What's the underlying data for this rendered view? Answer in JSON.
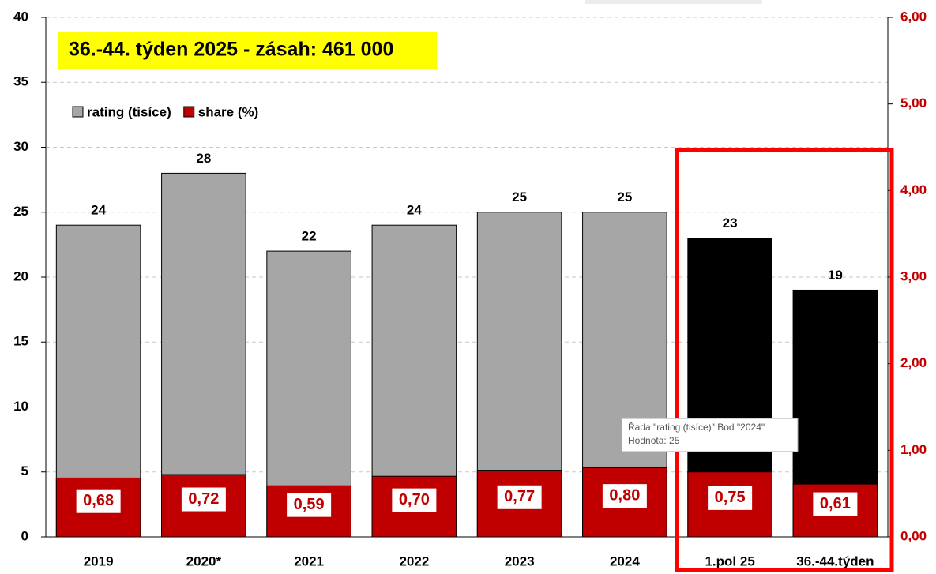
{
  "chart_data": {
    "type": "bar",
    "title": "36.-44. týden 2025 - zásah: 461 000",
    "categories": [
      "2019",
      "2020*",
      "2021",
      "2022",
      "2023",
      "2024",
      "1.pol 25",
      "36.-44.týden"
    ],
    "series": [
      {
        "name": "rating (tisíce)",
        "color": "#a6a6a6",
        "point_colors": [
          "#a6a6a6",
          "#a6a6a6",
          "#a6a6a6",
          "#a6a6a6",
          "#a6a6a6",
          "#a6a6a6",
          "#000000",
          "#000000"
        ],
        "values": [
          24,
          28,
          22,
          24,
          25,
          25,
          23,
          19
        ]
      },
      {
        "name": "share (%)",
        "color": "#c00000",
        "axis": "y2",
        "values": [
          0.68,
          0.72,
          0.59,
          0.7,
          0.77,
          0.8,
          0.75,
          0.61
        ],
        "value_labels": [
          "0,68",
          "0,72",
          "0,59",
          "0,70",
          "0,77",
          "0,80",
          "0,75",
          "0,61"
        ]
      }
    ],
    "ylim": [
      0,
      40
    ],
    "yticks": [
      0,
      5,
      10,
      15,
      20,
      25,
      30,
      35,
      40
    ],
    "y2lim": [
      0,
      6
    ],
    "y2ticks": [
      {
        "value": 0,
        "label": "0,00"
      },
      {
        "value": 1,
        "label": "1,00"
      },
      {
        "value": 2,
        "label": "2,00"
      },
      {
        "value": 3,
        "label": "3,00"
      },
      {
        "value": 4,
        "label": "4,00"
      },
      {
        "value": 5,
        "label": "5,00"
      },
      {
        "value": 6,
        "label": "6,00"
      }
    ],
    "grid": true,
    "legend": "top-left",
    "tooltip": [
      "Řada \"rating (tisíce)\" Bod \"2024\"",
      "Hodnota: 25"
    ]
  }
}
